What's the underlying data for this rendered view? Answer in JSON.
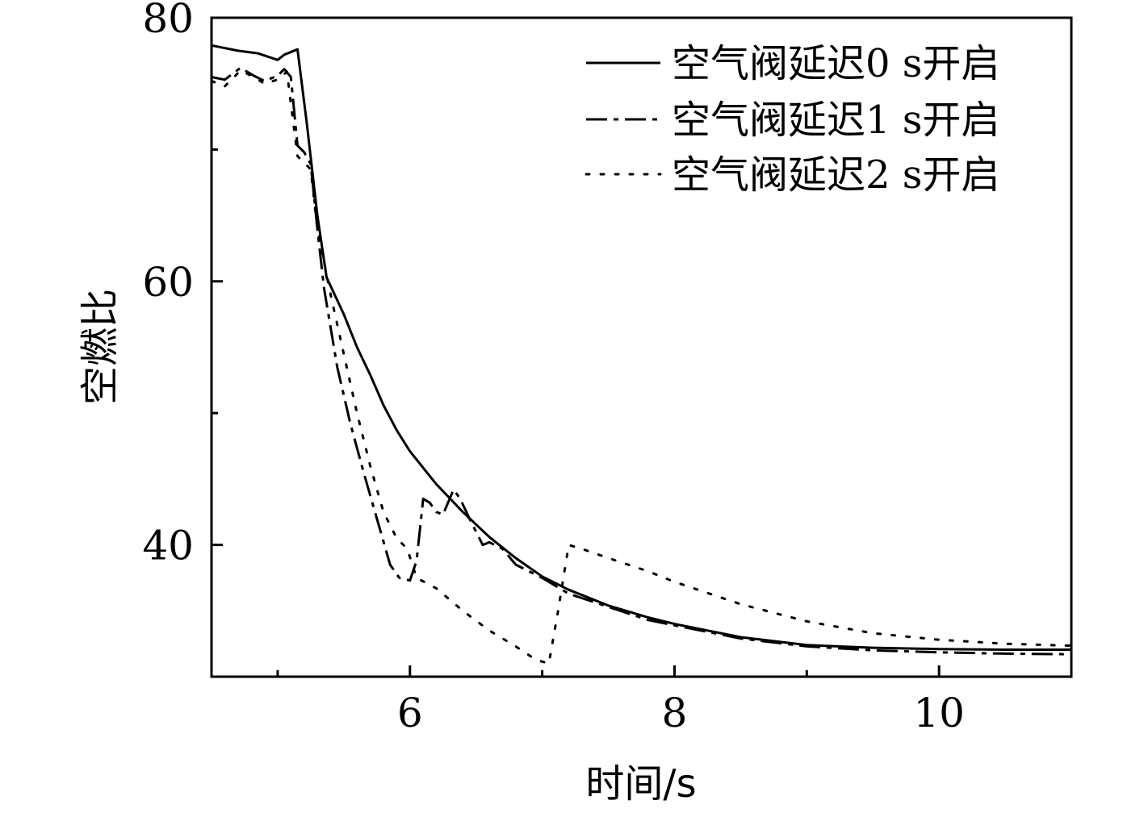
{
  "chart_data": {
    "type": "line",
    "xlabel": "时间/s",
    "ylabel": "空燃比",
    "xlim": [
      4.5,
      11.0
    ],
    "ylim": [
      30.0,
      80.0
    ],
    "x_ticks_major": [
      6,
      8,
      10
    ],
    "x_ticks_minor": [
      5,
      7,
      9,
      11
    ],
    "y_ticks_major": [
      40,
      60,
      80
    ],
    "y_ticks_minor": [
      50,
      70
    ],
    "grid": false,
    "legend_position": "top-right",
    "series": [
      {
        "name": "空气阀延迟0 s开启",
        "style": "solid",
        "points": [
          [
            4.5,
            77.9
          ],
          [
            4.7,
            77.5
          ],
          [
            4.85,
            77.3
          ],
          [
            5.0,
            76.8
          ],
          [
            5.05,
            77.2
          ],
          [
            5.15,
            77.6
          ],
          [
            5.22,
            72
          ],
          [
            5.3,
            65
          ],
          [
            5.37,
            60.3
          ],
          [
            5.5,
            57.5
          ],
          [
            5.6,
            55
          ],
          [
            5.7,
            52.9
          ],
          [
            5.8,
            50.6
          ],
          [
            5.9,
            48.7
          ],
          [
            6.0,
            47.1
          ],
          [
            6.2,
            44.6
          ],
          [
            6.4,
            42.5
          ],
          [
            6.6,
            40.6
          ],
          [
            6.8,
            39.0
          ],
          [
            7.0,
            37.6
          ],
          [
            7.2,
            36.6
          ],
          [
            7.5,
            35.4
          ],
          [
            7.8,
            34.5
          ],
          [
            8.0,
            34.0
          ],
          [
            8.5,
            33.0
          ],
          [
            9.0,
            32.4
          ],
          [
            9.5,
            32.2
          ],
          [
            10.0,
            32.1
          ],
          [
            10.5,
            32.05
          ],
          [
            11.0,
            32.05
          ]
        ]
      },
      {
        "name": "空气阀延迟1 s开启",
        "style": "dashdot",
        "points": [
          [
            4.5,
            75.5
          ],
          [
            4.6,
            75.3
          ],
          [
            4.72,
            76.2
          ],
          [
            4.82,
            75.6
          ],
          [
            4.9,
            75.2
          ],
          [
            5.0,
            75.6
          ],
          [
            5.05,
            76.1
          ],
          [
            5.1,
            75.5
          ],
          [
            5.15,
            70.3
          ],
          [
            5.2,
            69.8
          ],
          [
            5.25,
            68.9
          ],
          [
            5.3,
            64
          ],
          [
            5.35,
            59.5
          ],
          [
            5.45,
            53.5
          ],
          [
            5.55,
            49.2
          ],
          [
            5.65,
            45.5
          ],
          [
            5.75,
            42
          ],
          [
            5.85,
            38.5
          ],
          [
            5.92,
            37.5
          ],
          [
            6.0,
            37.3
          ],
          [
            6.05,
            38.8
          ],
          [
            6.1,
            43.5
          ],
          [
            6.15,
            43.2
          ],
          [
            6.2,
            42.5
          ],
          [
            6.25,
            42.3
          ],
          [
            6.33,
            44.2
          ],
          [
            6.38,
            43.5
          ],
          [
            6.45,
            42
          ],
          [
            6.5,
            41
          ],
          [
            6.55,
            40
          ],
          [
            6.6,
            40.2
          ],
          [
            6.7,
            39.7
          ],
          [
            6.8,
            38.5
          ],
          [
            7.0,
            37.5
          ],
          [
            7.2,
            36.3
          ],
          [
            7.5,
            35.3
          ],
          [
            7.8,
            34.3
          ],
          [
            8.0,
            33.9
          ],
          [
            8.5,
            32.9
          ],
          [
            9.0,
            32.3
          ],
          [
            9.5,
            32.0
          ],
          [
            10.0,
            31.85
          ],
          [
            10.5,
            31.75
          ],
          [
            11.0,
            31.7
          ]
        ]
      },
      {
        "name": "空气阀延迟2 s开启",
        "style": "dotted",
        "points": [
          [
            4.5,
            75.2
          ],
          [
            4.6,
            74.8
          ],
          [
            4.72,
            76.0
          ],
          [
            4.82,
            75.5
          ],
          [
            4.9,
            75.0
          ],
          [
            5.0,
            75.3
          ],
          [
            5.07,
            75.9
          ],
          [
            5.15,
            69.5
          ],
          [
            5.25,
            68.5
          ],
          [
            5.3,
            64
          ],
          [
            5.4,
            59.0
          ],
          [
            5.5,
            54.5
          ],
          [
            5.6,
            50.0
          ],
          [
            5.7,
            46
          ],
          [
            5.8,
            42.5
          ],
          [
            5.9,
            40.5
          ],
          [
            5.98,
            39.7
          ],
          [
            6.05,
            37.5
          ],
          [
            6.2,
            36.7
          ],
          [
            6.4,
            35.0
          ],
          [
            6.6,
            33.5
          ],
          [
            6.8,
            32.3
          ],
          [
            6.95,
            31.3
          ],
          [
            7.05,
            31.0
          ],
          [
            7.12,
            35
          ],
          [
            7.2,
            40
          ],
          [
            7.3,
            39.7
          ],
          [
            7.5,
            39.0
          ],
          [
            7.8,
            38.0
          ],
          [
            8.0,
            37.2
          ],
          [
            8.5,
            35.5
          ],
          [
            9.0,
            34.2
          ],
          [
            9.5,
            33.3
          ],
          [
            10.0,
            32.8
          ],
          [
            10.5,
            32.5
          ],
          [
            11.0,
            32.35
          ]
        ]
      }
    ]
  }
}
